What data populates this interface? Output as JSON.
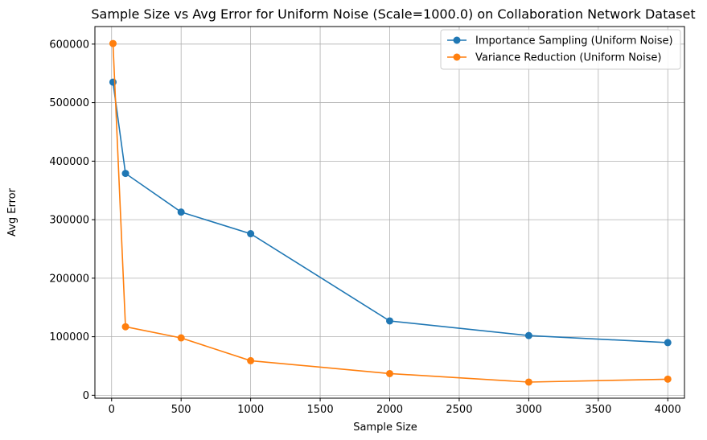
{
  "chart_data": {
    "type": "line",
    "title": "Sample Size vs Avg Error for Uniform Noise (Scale=1000.0) on Collaboration Network Dataset",
    "xlabel": "Sample Size",
    "ylabel": "Avg Error",
    "x": [
      10,
      100,
      500,
      1000,
      2000,
      3000,
      4000
    ],
    "xlim": [
      -120,
      4120
    ],
    "ylim": [
      -5000,
      630000
    ],
    "xticks": [
      0,
      500,
      1000,
      1500,
      2000,
      2500,
      3000,
      3500,
      4000
    ],
    "yticks": [
      0,
      100000,
      200000,
      300000,
      400000,
      500000,
      600000
    ],
    "grid": true,
    "legend_position": "top-right",
    "series": [
      {
        "name": "Importance Sampling (Uniform Noise)",
        "color": "#1f77b4",
        "values": [
          535000,
          379000,
          313000,
          276000,
          127000,
          102000,
          90000
        ]
      },
      {
        "name": "Variance Reduction (Uniform Noise)",
        "color": "#ff7f0e",
        "values": [
          601000,
          117000,
          98000,
          59000,
          37000,
          22500,
          27500
        ]
      }
    ]
  }
}
